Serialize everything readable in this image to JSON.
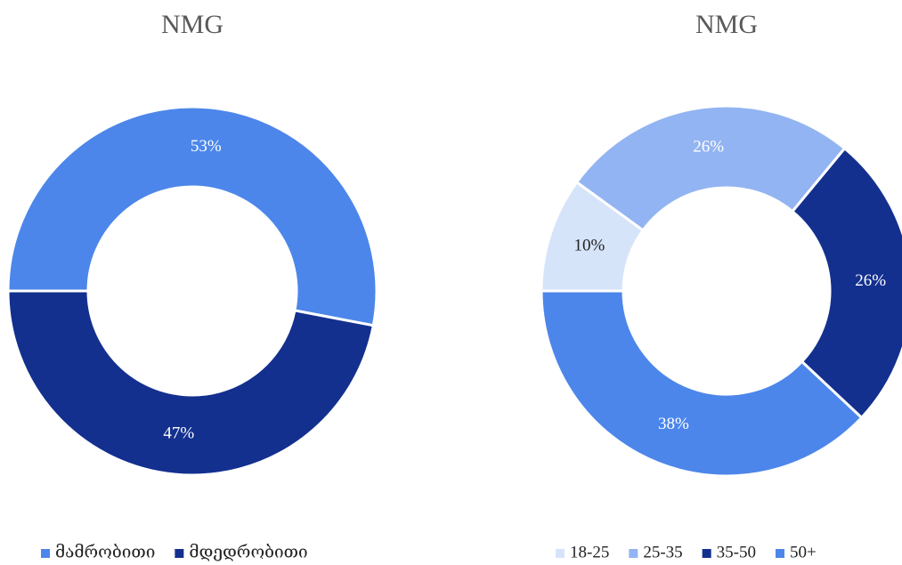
{
  "chart_data": [
    {
      "type": "donut",
      "title": "NMG",
      "categories": [
        "მამრობითი",
        "მდედრობითი"
      ],
      "values": [
        53,
        47
      ],
      "value_labels": [
        "53%",
        "47%"
      ],
      "colors": [
        "#4c86ea",
        "#13308f"
      ]
    },
    {
      "type": "donut",
      "title": "NMG",
      "categories": [
        "18-25",
        "25-35",
        "35-50",
        "50+"
      ],
      "values": [
        10,
        26,
        26,
        38
      ],
      "value_labels": [
        "10%",
        "26%",
        "26%",
        "38%"
      ],
      "colors": [
        "#d6e4fa",
        "#93b4f2",
        "#13308f",
        "#4c86ea"
      ]
    }
  ]
}
